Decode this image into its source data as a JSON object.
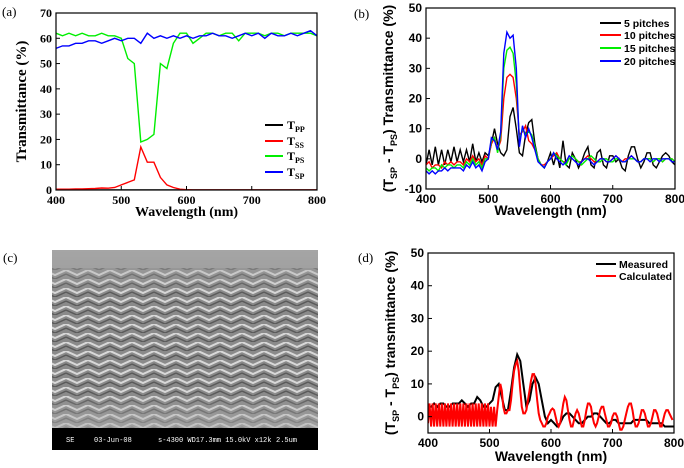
{
  "panels": {
    "a": "(a)",
    "b": "(b)",
    "c": "(c)",
    "d": "(d)"
  },
  "sem": {
    "mode": "SE",
    "date": "03-Jun-08",
    "info": "s-4300 WD17.3mm 15.0kV x12k",
    "scale": "2.5um"
  },
  "chart_data": [
    {
      "id": "a",
      "type": "line",
      "title": "",
      "xlabel": "Wavelength (nm)",
      "ylabel": "Transmittance (%)",
      "xlim": [
        400,
        800
      ],
      "ylim": [
        0,
        70
      ],
      "xticks": [
        400,
        500,
        600,
        700,
        800
      ],
      "yticks": [
        0,
        10,
        20,
        30,
        40,
        50,
        60,
        70
      ],
      "legend_position": "bottom-right",
      "series": [
        {
          "name": "T",
          "sub": "PP",
          "color": "#000000",
          "x_start": 400,
          "x_step": 10,
          "values": [
            0,
            0,
            0,
            0,
            0,
            0,
            0,
            0,
            0,
            0,
            0,
            0,
            0,
            0,
            0,
            0,
            0,
            0,
            0,
            0,
            0,
            0,
            0,
            0,
            0,
            0,
            0,
            0,
            0,
            0,
            0,
            0,
            0,
            0,
            0,
            0,
            0,
            0,
            0,
            0,
            0
          ]
        },
        {
          "name": "T",
          "sub": "SS",
          "color": "#ff0000",
          "x_start": 400,
          "x_step": 10,
          "values": [
            0.3,
            0.3,
            0.3,
            0.4,
            0.4,
            0.5,
            0.6,
            0.8,
            0.7,
            1,
            2,
            3,
            4,
            17,
            11,
            11,
            5,
            2,
            1,
            0.3,
            0.1,
            0,
            0,
            0,
            0,
            0,
            0,
            0,
            0,
            0,
            0,
            0,
            0,
            0,
            0,
            0,
            0,
            0,
            0,
            0,
            0
          ]
        },
        {
          "name": "T",
          "sub": "PS",
          "color": "#00ee00",
          "x_start": 400,
          "x_step": 10,
          "values": [
            62,
            61,
            62,
            61,
            62,
            61,
            61,
            62,
            61,
            61,
            60,
            52,
            50,
            19,
            20,
            22,
            50,
            48,
            58,
            62,
            62,
            58,
            60,
            62,
            62,
            61,
            62,
            62,
            59,
            62,
            62,
            62,
            61,
            62,
            62,
            61,
            62,
            62,
            62,
            62,
            61
          ]
        },
        {
          "name": "T",
          "sub": "SP",
          "color": "#0000ff",
          "x_start": 400,
          "x_step": 10,
          "values": [
            56,
            57,
            57,
            58,
            58,
            59,
            59,
            58,
            59,
            60,
            59,
            60,
            60,
            58,
            62,
            60,
            61,
            60,
            61,
            60,
            61,
            60,
            61,
            61,
            62,
            61,
            61,
            60,
            61,
            62,
            61,
            62,
            60,
            62,
            61,
            61,
            62,
            61,
            62,
            63,
            61
          ]
        }
      ]
    },
    {
      "id": "b",
      "type": "line",
      "xlabel": "Wavelength (nm)",
      "ylabel_parts": [
        "(T",
        "SP",
        " - T",
        "PS",
        ") Transmittance (%)"
      ],
      "xlim": [
        400,
        800
      ],
      "ylim": [
        -10,
        50
      ],
      "xticks": [
        400,
        500,
        600,
        700,
        800
      ],
      "yticks": [
        -10,
        0,
        10,
        20,
        30,
        40,
        50
      ],
      "legend_position": "top-right",
      "series": [
        {
          "name": "5 pitches",
          "color": "#000000",
          "x_start": 400,
          "x_step": 5,
          "values": [
            -2,
            3,
            -2,
            4,
            -2,
            3,
            -2,
            3,
            -1,
            4,
            -1,
            3,
            -1,
            3,
            -1,
            5,
            -1,
            2,
            -1,
            2,
            1,
            5,
            10,
            5,
            2,
            1,
            3,
            14,
            17,
            10,
            2,
            1,
            8,
            12,
            13,
            5,
            0,
            -2,
            -3,
            -1,
            2,
            -2,
            2,
            -3,
            6,
            -2,
            -3,
            2,
            0,
            -3,
            -1,
            2,
            4,
            -2,
            -3,
            2,
            3,
            -2,
            -3,
            1,
            1,
            -1,
            0,
            -3,
            -4,
            1,
            4,
            4,
            0,
            -3,
            -1,
            2,
            2,
            -2,
            -3,
            -1,
            1,
            2,
            1,
            -1,
            -2
          ]
        },
        {
          "name": "10 pitches",
          "color": "#ff0000",
          "x_start": 400,
          "x_step": 5,
          "values": [
            -2,
            -1,
            -3,
            -2,
            -2,
            -3,
            -1,
            -2,
            -1,
            -2,
            -1,
            -1,
            -2,
            0,
            -1,
            1,
            -1,
            0,
            -2,
            1,
            0,
            5,
            7,
            3,
            6,
            20,
            27,
            28,
            27,
            20,
            8,
            9,
            11,
            6,
            5,
            3,
            0,
            -2,
            -2,
            -1,
            0,
            1,
            2,
            0,
            -1,
            -1,
            0,
            1,
            0,
            -1,
            -1,
            0,
            1,
            0,
            -1,
            -1,
            0,
            0,
            -1,
            -1,
            0,
            1,
            0,
            -1,
            0,
            0,
            1,
            0,
            -1,
            -1,
            0,
            0,
            0,
            -1,
            0,
            0,
            -1,
            0,
            0,
            0,
            -1
          ]
        },
        {
          "name": "15 pitches",
          "color": "#00ee00",
          "x_start": 400,
          "x_step": 5,
          "values": [
            -3,
            -4,
            -3,
            -3,
            -4,
            -2,
            -3,
            -2,
            -2,
            -3,
            -2,
            -2,
            -3,
            -1,
            -2,
            0,
            -2,
            -1,
            -3,
            0,
            0,
            6,
            7,
            2,
            8,
            30,
            36,
            37,
            35,
            25,
            6,
            10,
            8,
            9,
            8,
            4,
            0,
            -2,
            -3,
            -1,
            0,
            2,
            1,
            0,
            -1,
            -2,
            0,
            1,
            0,
            -1,
            -2,
            -1,
            0,
            1,
            0,
            -1,
            -1,
            0,
            0,
            -1,
            -1,
            0,
            0,
            -1,
            -1,
            0,
            0,
            0,
            -1,
            -1,
            0,
            0,
            0,
            -1,
            0,
            0,
            -1,
            0,
            0,
            0,
            -1
          ]
        },
        {
          "name": "20 pitches",
          "color": "#0000ff",
          "x_start": 400,
          "x_step": 5,
          "values": [
            -4,
            -5,
            -4,
            -5,
            -4,
            -4,
            -3,
            -4,
            -3,
            -3,
            -3,
            -3,
            -4,
            -2,
            -3,
            -1,
            -3,
            -2,
            -4,
            -1,
            0,
            7,
            6,
            3,
            9,
            35,
            42,
            40,
            41,
            30,
            4,
            11,
            7,
            10,
            7,
            3,
            -1,
            -2,
            -3,
            -1,
            0,
            2,
            0,
            -1,
            -2,
            -1,
            1,
            0,
            -1,
            -2,
            -1,
            0,
            0,
            -1,
            -2,
            -1,
            0,
            0,
            -1,
            -1,
            0,
            1,
            0,
            -1,
            -1,
            0,
            1,
            0,
            -1,
            -1,
            0,
            0,
            -1,
            0,
            0,
            -1,
            0,
            0,
            0,
            -1,
            -1
          ]
        }
      ]
    },
    {
      "id": "d",
      "type": "line",
      "xlabel": "Wavelength (nm)",
      "ylabel_parts": [
        "(T",
        "SP",
        " - T",
        "PS",
        ") transmittance (%)"
      ],
      "xlim": [
        400,
        800
      ],
      "ylim": [
        -5,
        50
      ],
      "xticks": [
        400,
        500,
        600,
        700,
        800
      ],
      "yticks": [
        0,
        10,
        20,
        30,
        40,
        50
      ],
      "legend_position": "top-right",
      "series": [
        {
          "name": "Measured",
          "color": "#000000",
          "x_start": 400,
          "x_step": 5,
          "values": [
            3,
            3,
            4,
            3,
            4,
            4,
            3,
            3,
            4,
            4,
            4,
            5,
            4,
            3,
            4,
            4,
            6,
            5,
            3,
            3,
            4,
            5,
            9,
            10,
            6,
            2,
            2,
            8,
            15,
            19,
            17,
            10,
            3,
            5,
            10,
            12,
            10,
            5,
            0,
            -2,
            -1,
            -2,
            -3,
            -2,
            0,
            1,
            1,
            0,
            -1,
            -2,
            -2,
            -1,
            0,
            0,
            1,
            1,
            0,
            -1,
            -2,
            -2,
            -1,
            -1,
            -2,
            -2,
            -2,
            -2,
            -2,
            -1,
            -1,
            -1,
            -1,
            -1,
            -2,
            -2,
            -2,
            -2,
            -2,
            -3,
            -3,
            -3,
            -3
          ]
        },
        {
          "name": "Calculated",
          "color": "#ff0000",
          "x_start": 400,
          "x_step": 2.5,
          "values": [
            -2,
            4,
            -3,
            4,
            -3,
            4,
            -3,
            4,
            -3,
            4,
            -3,
            4,
            -3,
            4,
            -3,
            4,
            -3,
            4,
            -3,
            4,
            -3,
            4,
            -3,
            4,
            -3,
            4,
            -3,
            4,
            -3,
            4,
            -3,
            4,
            -3,
            4,
            -3,
            4,
            -3,
            4,
            -3,
            4,
            -3,
            3,
            -3,
            3,
            -3,
            2,
            6,
            10,
            8,
            3,
            1,
            1,
            2,
            2,
            5,
            10,
            14,
            16,
            17,
            14,
            8,
            3,
            1,
            1,
            2,
            5,
            8,
            11,
            13,
            13,
            10,
            5,
            1,
            -1,
            -2,
            -3,
            -3,
            -2,
            0,
            1,
            2,
            2.5,
            2,
            0,
            -2,
            -3,
            -2,
            1,
            4,
            6,
            5,
            2,
            -1,
            -3,
            -3,
            -1,
            1,
            2,
            1,
            -1,
            -3,
            -3,
            -1,
            2,
            4,
            4,
            3,
            0,
            -2,
            -3,
            -2,
            0,
            2,
            3,
            3,
            1,
            -1,
            -3,
            -3,
            -2,
            0,
            1,
            1,
            0,
            -2,
            -4,
            -4,
            -3,
            -1,
            1,
            3,
            4,
            4,
            2,
            -1,
            -3,
            -3,
            -2,
            0,
            2,
            2,
            1,
            -1,
            -3,
            -3,
            -2,
            0,
            2,
            2,
            1,
            -1,
            -3,
            -3,
            -1,
            1,
            2,
            2,
            1,
            0,
            -1
          ]
        }
      ]
    }
  ]
}
